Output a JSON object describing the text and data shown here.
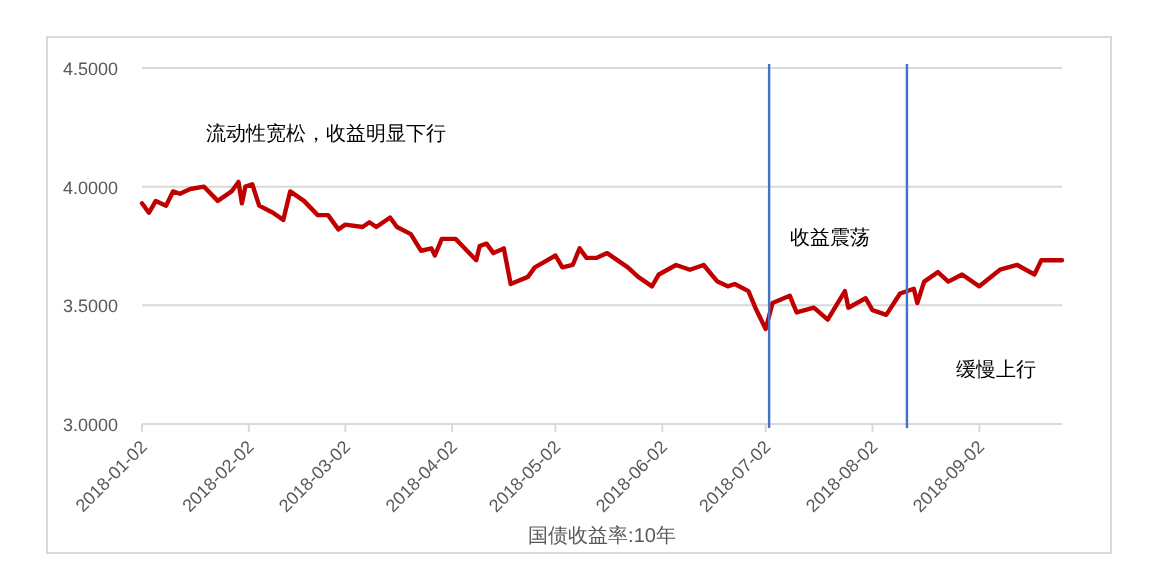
{
  "chart_data": {
    "type": "line",
    "xlabel": "国债收益率:10年",
    "annotations": [
      "流动性宽松，收益明显下行",
      "收益震荡",
      "缓慢上行"
    ],
    "x": [
      "2018-01-02",
      "2018-01-04",
      "2018-01-06",
      "2018-01-09",
      "2018-01-11",
      "2018-01-13",
      "2018-01-16",
      "2018-01-20",
      "2018-01-24",
      "2018-01-28",
      "2018-01-30",
      "2018-01-31",
      "2018-02-01",
      "2018-02-03",
      "2018-02-05",
      "2018-02-09",
      "2018-02-12",
      "2018-02-14",
      "2018-02-18",
      "2018-02-22",
      "2018-02-25",
      "2018-02-28",
      "2018-03-02",
      "2018-03-07",
      "2018-03-09",
      "2018-03-11",
      "2018-03-15",
      "2018-03-17",
      "2018-03-21",
      "2018-03-24",
      "2018-03-27",
      "2018-03-28",
      "2018-03-30",
      "2018-04-03",
      "2018-04-05",
      "2018-04-09",
      "2018-04-10",
      "2018-04-12",
      "2018-04-14",
      "2018-04-17",
      "2018-04-19",
      "2018-04-24",
      "2018-04-26",
      "2018-05-02",
      "2018-05-04",
      "2018-05-07",
      "2018-05-09",
      "2018-05-11",
      "2018-05-14",
      "2018-05-17",
      "2018-05-23",
      "2018-05-26",
      "2018-05-30",
      "2018-06-01",
      "2018-06-06",
      "2018-06-10",
      "2018-06-14",
      "2018-06-18",
      "2018-06-21",
      "2018-06-23",
      "2018-06-27",
      "2018-06-29",
      "2018-07-02",
      "2018-07-04",
      "2018-07-09",
      "2018-07-11",
      "2018-07-16",
      "2018-07-20",
      "2018-07-25",
      "2018-07-26",
      "2018-07-31",
      "2018-08-02",
      "2018-08-06",
      "2018-08-10",
      "2018-08-14",
      "2018-08-15",
      "2018-08-17",
      "2018-08-21",
      "2018-08-24",
      "2018-08-28",
      "2018-09-02",
      "2018-09-08",
      "2018-09-13",
      "2018-09-18",
      "2018-09-20",
      "2018-09-26"
    ],
    "series": [
      {
        "color": "#c00000",
        "values": [
          3.93,
          3.89,
          3.94,
          3.92,
          3.98,
          3.97,
          3.99,
          4.0,
          3.94,
          3.98,
          4.02,
          3.93,
          4.0,
          4.01,
          3.92,
          3.89,
          3.86,
          3.98,
          3.94,
          3.88,
          3.88,
          3.82,
          3.84,
          3.83,
          3.85,
          3.83,
          3.87,
          3.83,
          3.8,
          3.73,
          3.74,
          3.71,
          3.78,
          3.78,
          3.75,
          3.69,
          3.75,
          3.76,
          3.72,
          3.74,
          3.59,
          3.62,
          3.66,
          3.71,
          3.66,
          3.67,
          3.74,
          3.7,
          3.7,
          3.72,
          3.66,
          3.62,
          3.58,
          3.63,
          3.67,
          3.65,
          3.67,
          3.6,
          3.58,
          3.59,
          3.56,
          3.49,
          3.4,
          3.51,
          3.54,
          3.47,
          3.49,
          3.44,
          3.56,
          3.49,
          3.53,
          3.48,
          3.46,
          3.55,
          3.57,
          3.51,
          3.6,
          3.64,
          3.6,
          3.63,
          3.58,
          3.65,
          3.67,
          3.63,
          3.69,
          3.69
        ]
      }
    ],
    "xlim": [
      "2018-01-02",
      "2018-09-26"
    ],
    "xticks": [
      "2018-01-02",
      "2018-02-02",
      "2018-03-02",
      "2018-04-02",
      "2018-05-02",
      "2018-06-02",
      "2018-07-02",
      "2018-08-02",
      "2018-09-02"
    ],
    "ylim": [
      3,
      4.5
    ],
    "yticks": [
      {
        "value": 3,
        "label": "3.0000"
      },
      {
        "value": 3.5,
        "label": "3.5000"
      },
      {
        "value": 4,
        "label": "4.0000"
      },
      {
        "value": 4.5,
        "label": "4.5000"
      }
    ],
    "ref_lines": [
      {
        "axis": "x",
        "value": "2018-07-03",
        "color": "#4472c4"
      },
      {
        "axis": "x",
        "value": "2018-08-12",
        "color": "#4472c4"
      }
    ],
    "grid": "y",
    "line_style": "solid",
    "marker": "none"
  }
}
